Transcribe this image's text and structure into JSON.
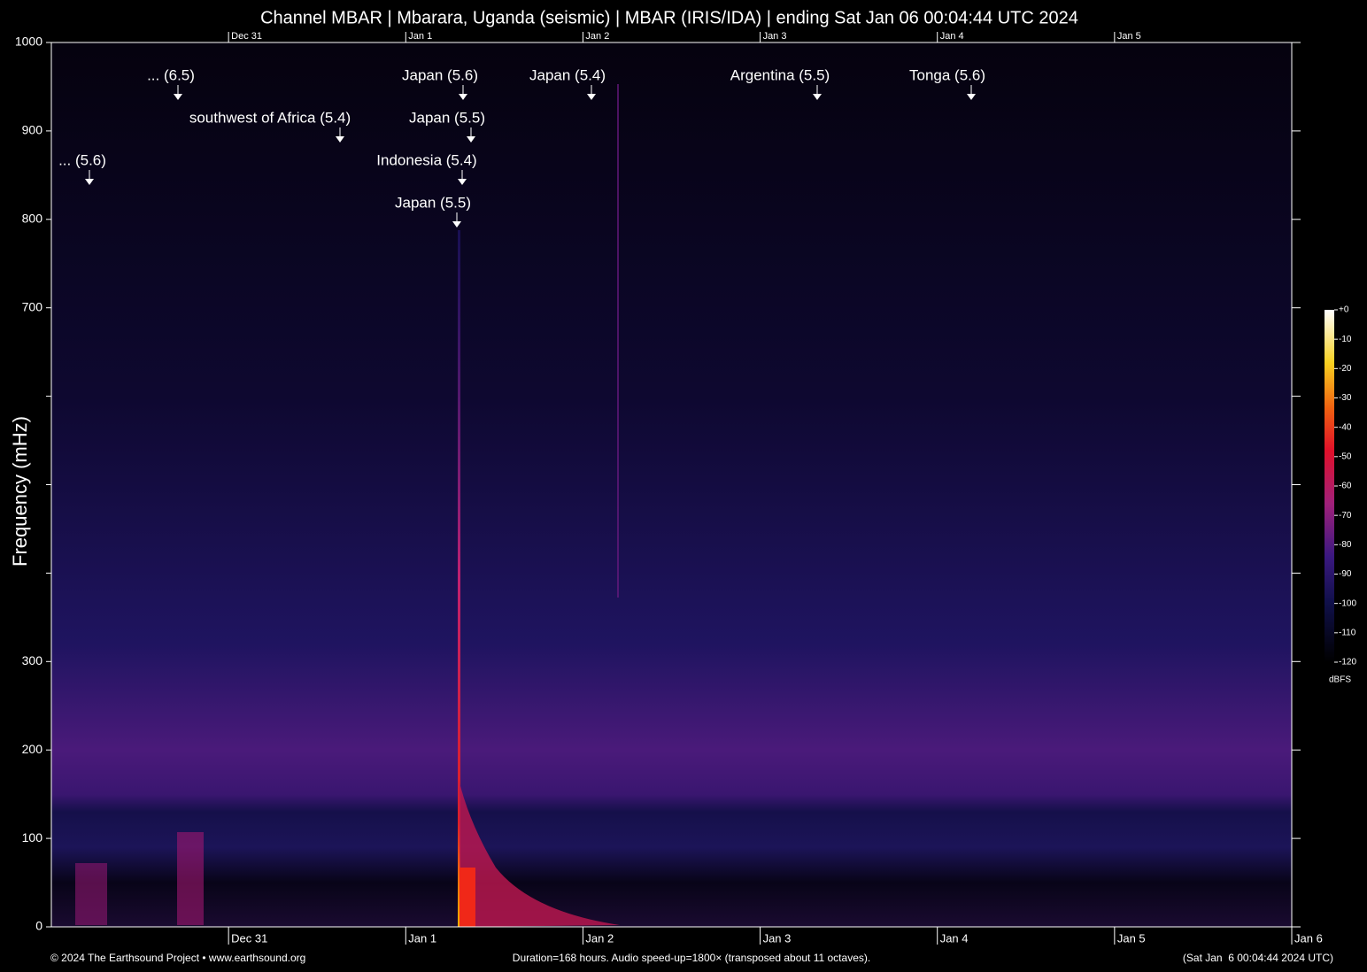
{
  "chart_data": {
    "type": "spectrogram",
    "title": "Channel MBAR | Mbarara, Uganda (seismic) | MBAR (IRIS/IDA) | ending Sat Jan 06 00:04:44 UTC 2024",
    "y_label": "Frequency (mHz)",
    "ylim": [
      0,
      1000
    ],
    "yticks": [
      0,
      100,
      200,
      300,
      700,
      800,
      900,
      1000
    ],
    "yminorticks": [
      400,
      500,
      600
    ],
    "xticks": [
      "Dec 31",
      "Jan 1",
      "Jan 2",
      "Jan 3",
      "Jan 4",
      "Jan 5",
      "Jan 6"
    ],
    "annotations": [
      "... (6.5)",
      "southwest of Africa (5.4)",
      "... (5.6)",
      "Japan (5.6)",
      "Japan (5.5)",
      "Indonesia (5.4)",
      "Japan (5.5)",
      "Japan (5.4)",
      "Argentina (5.5)",
      "Tonga (5.6)"
    ],
    "colorbar": {
      "label": "dBFS",
      "lim": [
        -120,
        0
      ],
      "ticks": [
        {
          "value": 0,
          "label": "+0"
        },
        -10,
        -20,
        -30,
        -40,
        -50,
        -60,
        -70,
        -80,
        -90,
        -100,
        -110,
        -120
      ]
    },
    "footer": {
      "left": "© 2024 The Earthsound Project • www.earthsound.org",
      "center": "Duration=168 hours. Audio speed-up=1800× (transposed about 11 octaves).",
      "right": "(Sat Jan  6 00:04:44 2024 UTC)"
    }
  }
}
